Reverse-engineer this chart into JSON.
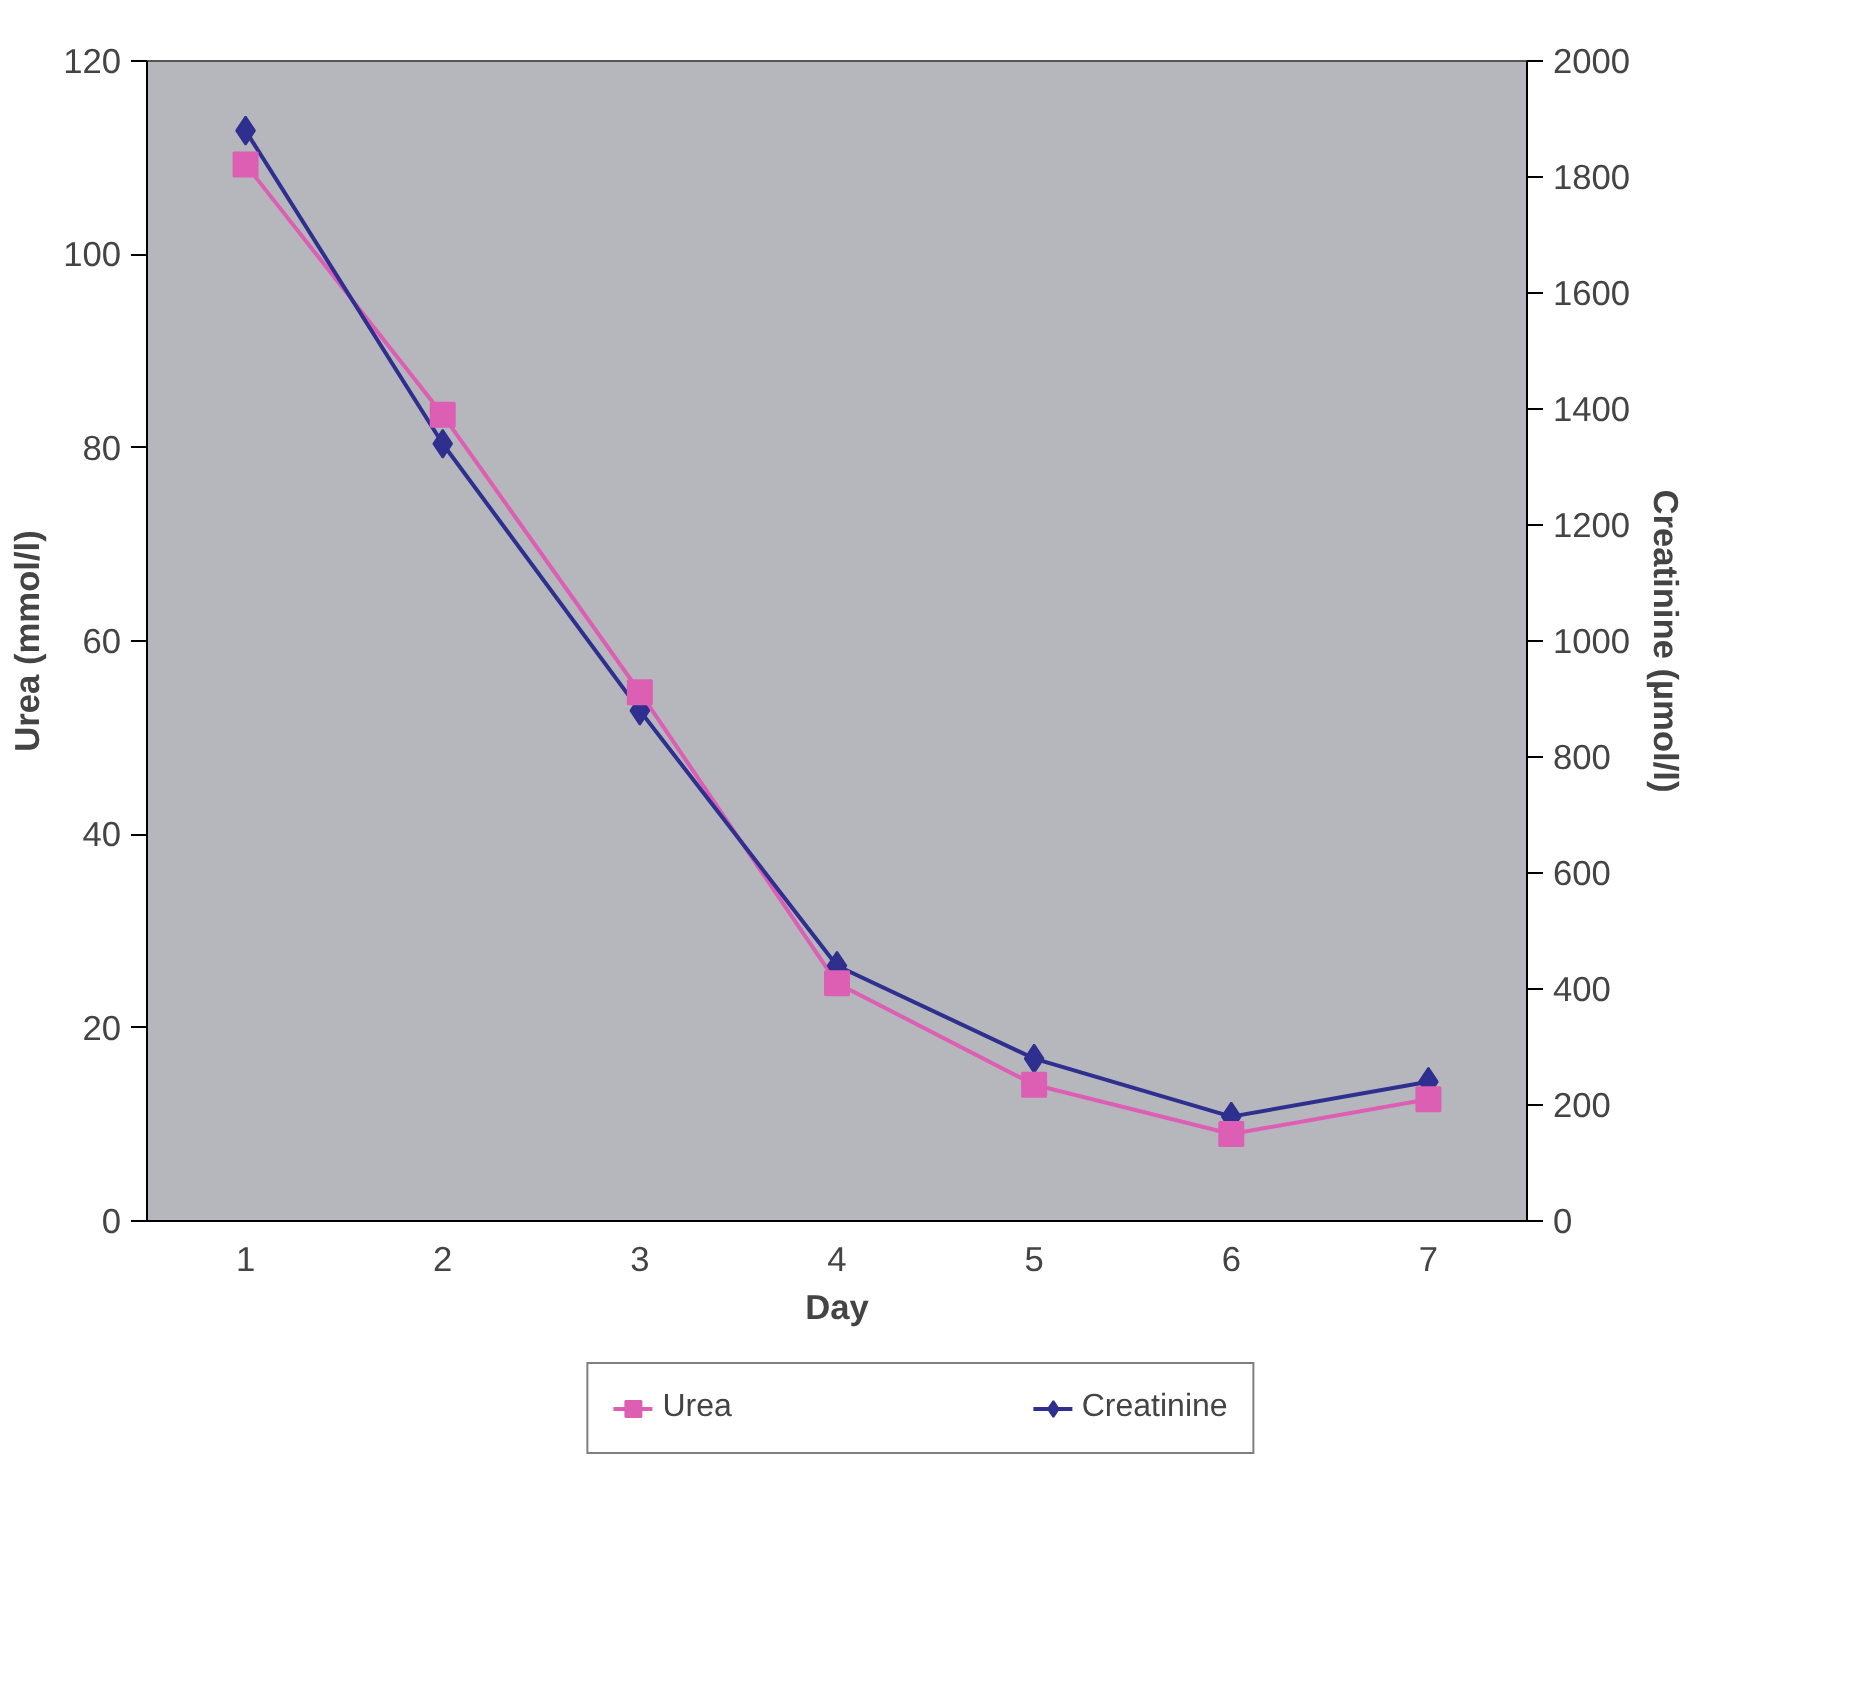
{
  "chart_data": {
    "type": "line",
    "xlabel": "Day",
    "ylabel": "Urea (mmol/l)",
    "y2label": "Creatinine (µmol/l)",
    "categories": [
      "1",
      "2",
      "3",
      "4",
      "5",
      "6",
      "7"
    ],
    "series": [
      {
        "name": "Urea",
        "color": "#dd5fb4",
        "marker": "square",
        "values": [
          109.3,
          83.4,
          54.7,
          24.6,
          14.1,
          9.0,
          12.6
        ]
      },
      {
        "name": "Creatinine",
        "color": "#2e2f8f",
        "marker": "diamond",
        "axis": "y2",
        "values": [
          1880,
          1340,
          880,
          440,
          280,
          180,
          240
        ]
      }
    ],
    "ylim": [
      0,
      120
    ],
    "yticks": [
      0,
      20,
      40,
      60,
      80,
      100,
      120
    ],
    "y2lim": [
      0,
      2000
    ],
    "y2ticks": [
      0,
      200,
      400,
      600,
      800,
      1000,
      1200,
      1400,
      1600,
      1800,
      2000
    ],
    "grid": false,
    "legend": "bottom"
  }
}
